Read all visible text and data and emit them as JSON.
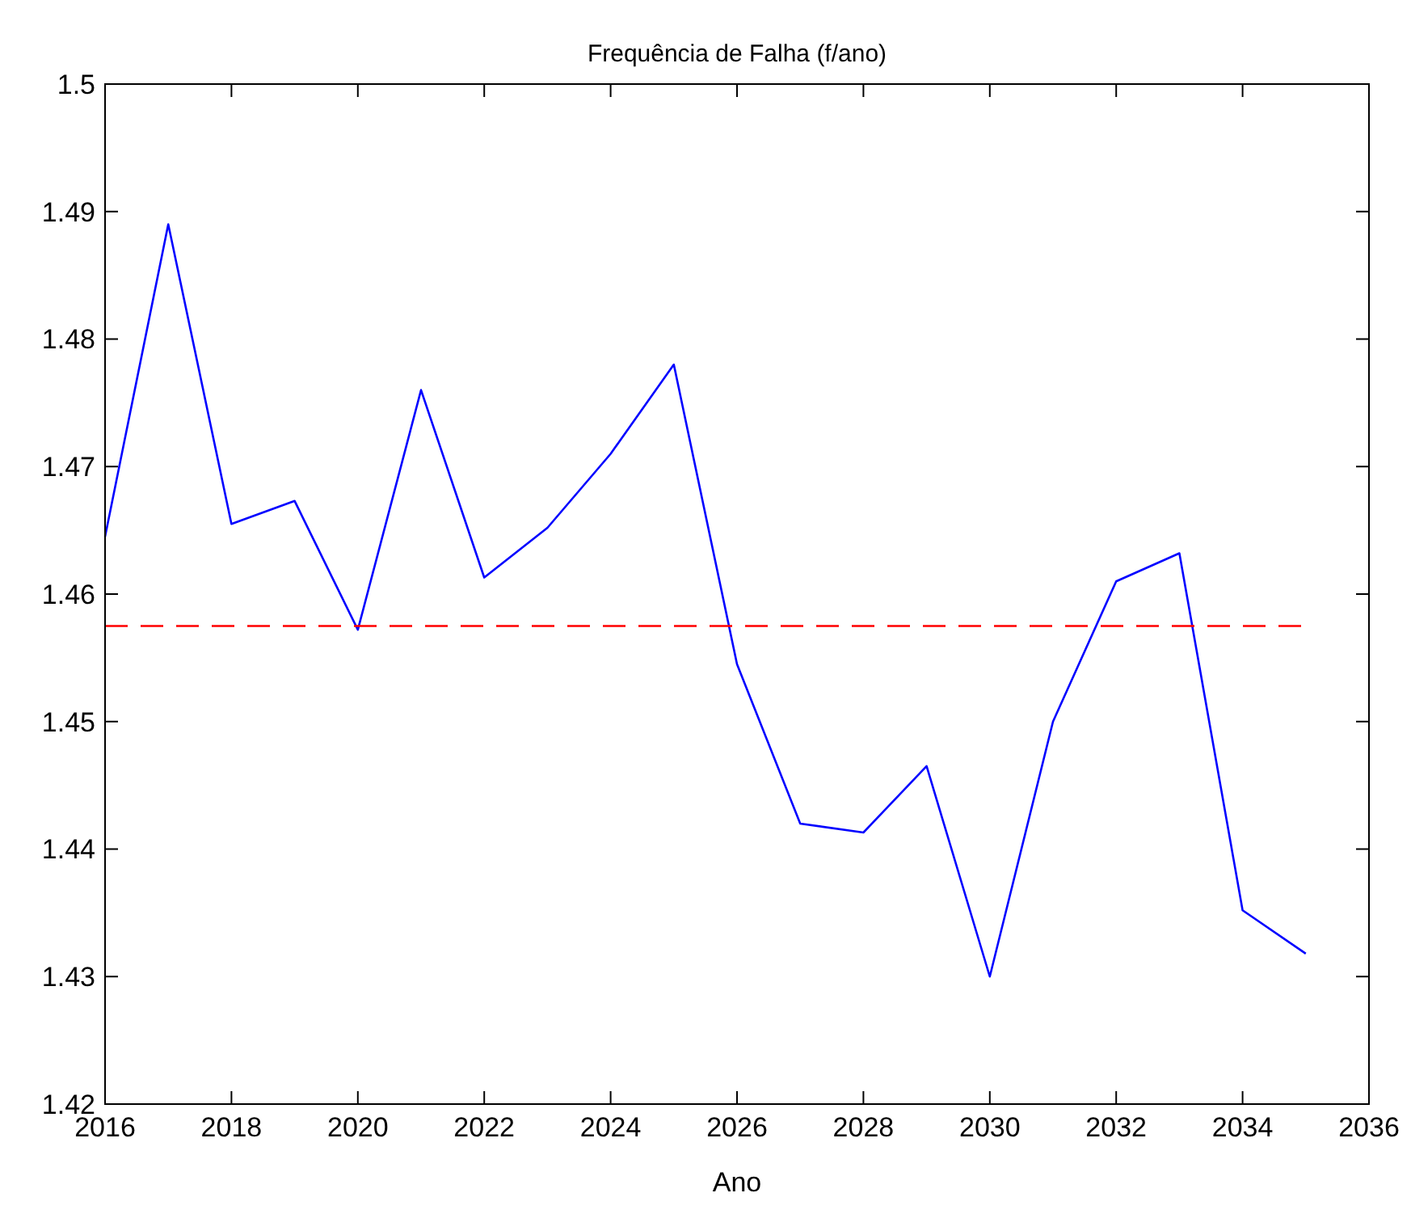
{
  "chart_data": {
    "type": "line",
    "title": "Frequência de Falha (f/ano)",
    "xlabel": "Ano",
    "xlim": [
      2016,
      2036
    ],
    "xticks": [
      2016,
      2018,
      2020,
      2022,
      2024,
      2026,
      2028,
      2030,
      2032,
      2034,
      2036
    ],
    "ylim": [
      1.42,
      1.5
    ],
    "yticks": [
      1.42,
      1.43,
      1.44,
      1.45,
      1.46,
      1.47,
      1.48,
      1.49,
      1.5
    ],
    "x": [
      2016,
      2017,
      2018,
      2019,
      2020,
      2021,
      2022,
      2023,
      2024,
      2025,
      2026,
      2027,
      2028,
      2029,
      2030,
      2031,
      2032,
      2033,
      2034,
      2035
    ],
    "series": [
      {
        "color": "#0000ff",
        "line_style": "solid",
        "values": [
          1.4645,
          1.489,
          1.4655,
          1.4673,
          1.4572,
          1.476,
          1.4613,
          1.4652,
          1.471,
          1.478,
          1.4545,
          1.442,
          1.4413,
          1.4465,
          1.43,
          1.45,
          1.461,
          1.4632,
          1.4352,
          1.4318
        ]
      },
      {
        "color": "#ff0000",
        "line_style": "dashed",
        "x": [
          2016,
          2035
        ],
        "values": [
          1.4575,
          1.4575
        ]
      }
    ]
  }
}
